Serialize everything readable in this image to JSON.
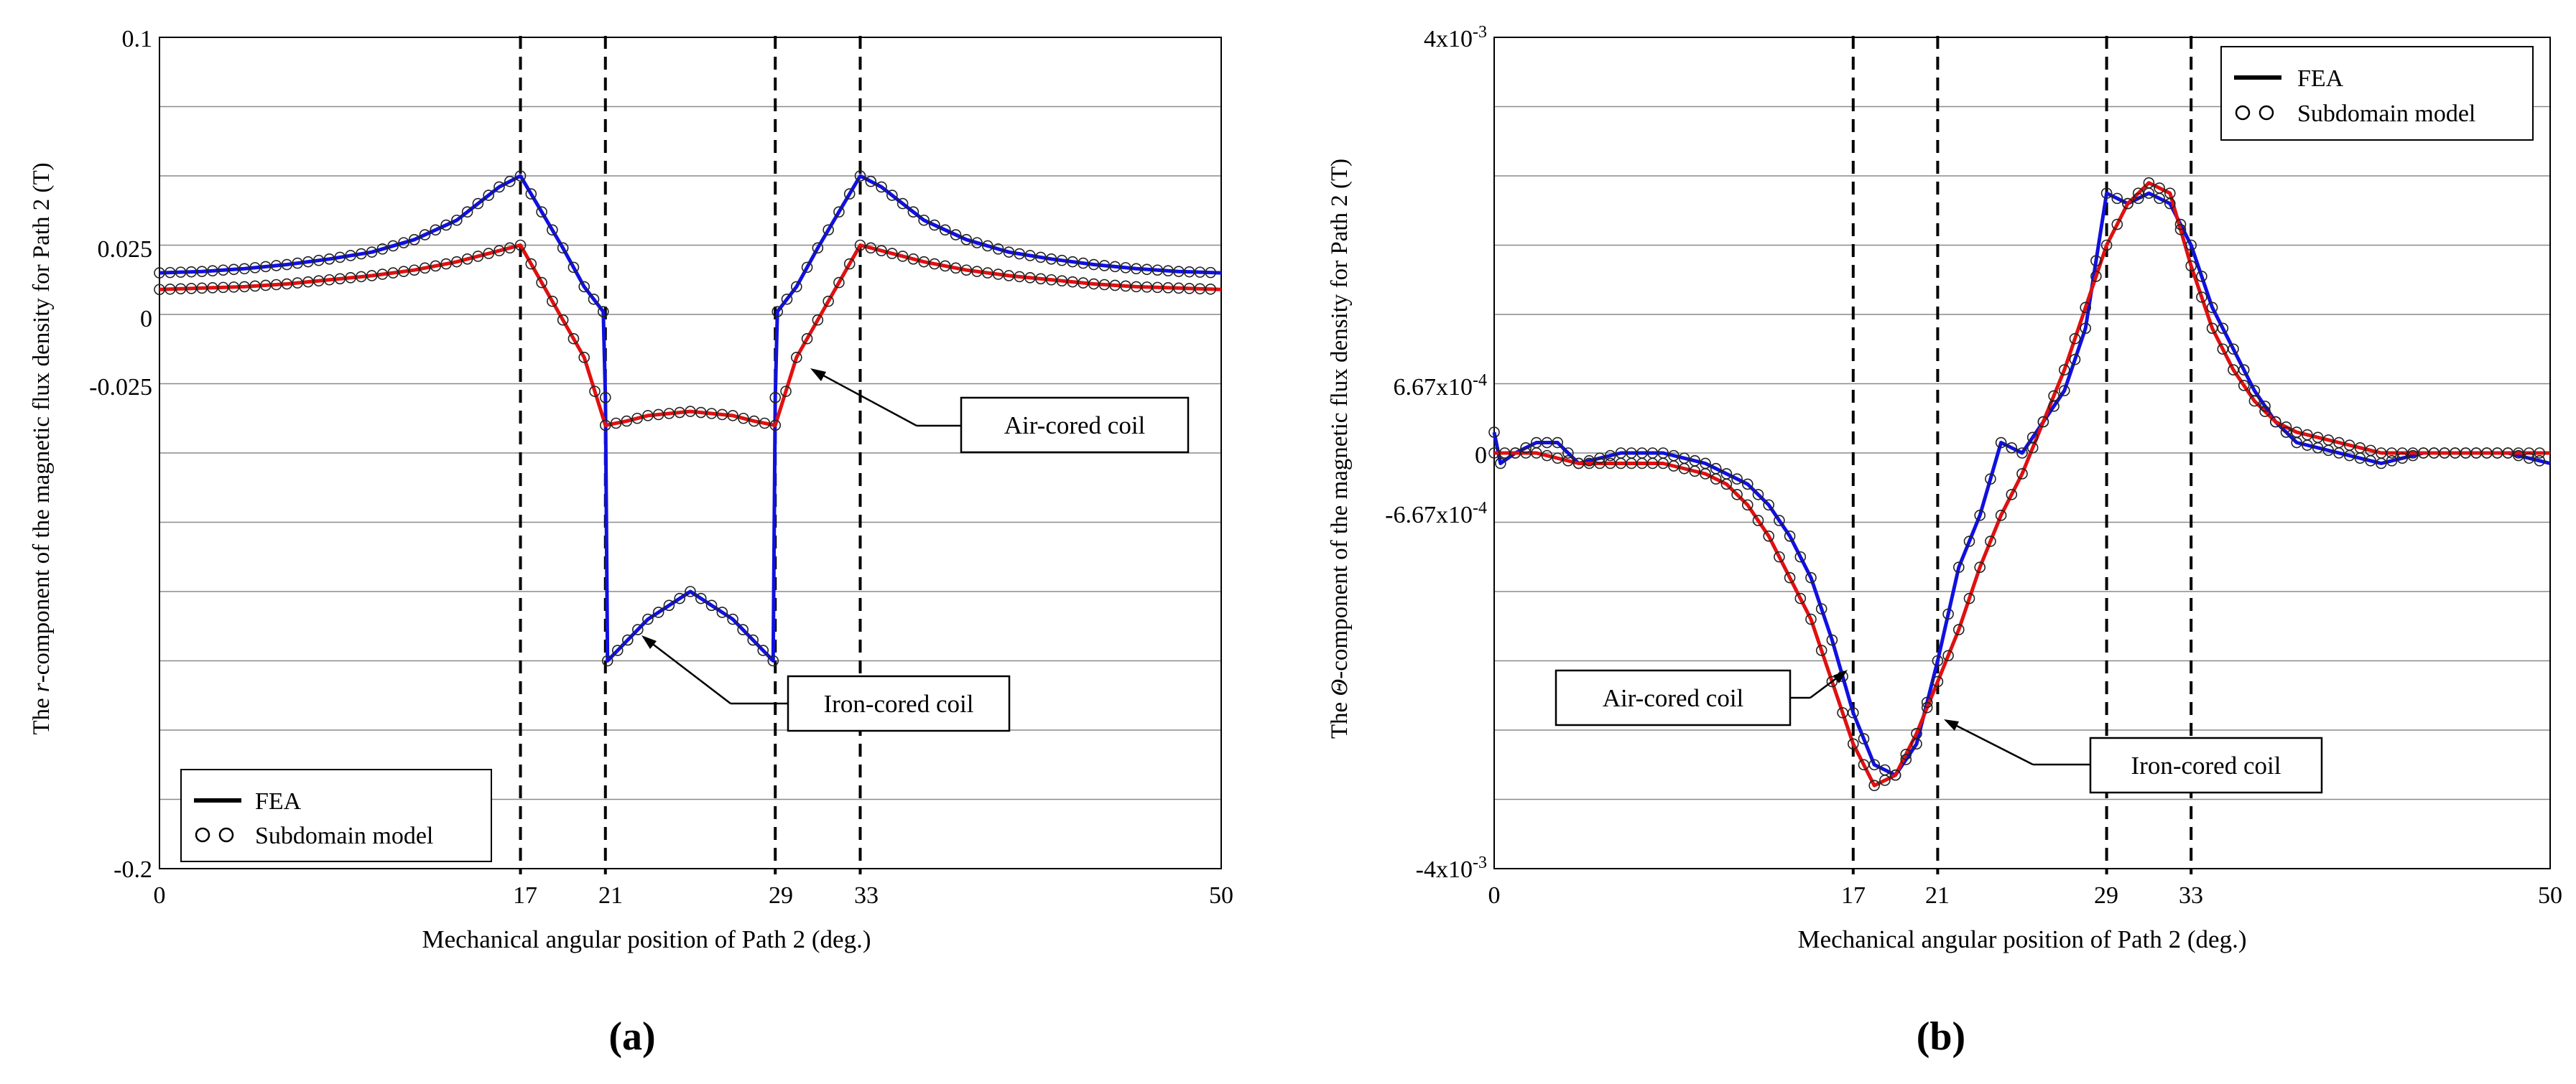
{
  "chart_data": [
    {
      "panel": "a",
      "caption": "(a)",
      "type": "line",
      "xlabel": "Mechanical angular position of Path 2 (deg.)",
      "ylabel_prefix": "The ",
      "ylabel_symbol": "r",
      "ylabel_suffix": "-component of the magnetic flux density for Path 2 (T)",
      "xlim": [
        0,
        50
      ],
      "ylim": [
        -0.2,
        0.1
      ],
      "xticks": [
        "0",
        "17",
        "21",
        "29",
        "33",
        "50"
      ],
      "yticks": [
        "0.1",
        "0.025",
        "0",
        "-0.025",
        "-0.2"
      ],
      "vlines": [
        17,
        21,
        29,
        33
      ],
      "legend": {
        "position": "bottom-left",
        "fea": "FEA",
        "model": "Subdomain model"
      },
      "annotations": {
        "air": "Air-cored coil",
        "iron": "Iron-cored coil"
      },
      "series": [
        {
          "name": "Iron-cored coil",
          "color": "#1010e0",
          "x": [
            0,
            2,
            4,
            6,
            8,
            10,
            12,
            14,
            15,
            16,
            17,
            18,
            19,
            20,
            20.9,
            21,
            21.1,
            23,
            25,
            27,
            28.9,
            29,
            29.1,
            30,
            31,
            32,
            33,
            34,
            35,
            36,
            38,
            40,
            42,
            44,
            46,
            48,
            50
          ],
          "y": [
            0.015,
            0.0155,
            0.0165,
            0.018,
            0.02,
            0.0225,
            0.027,
            0.034,
            0.04,
            0.046,
            0.05,
            0.037,
            0.024,
            0.01,
            0.001,
            -0.03,
            -0.125,
            -0.11,
            -0.1,
            -0.11,
            -0.125,
            -0.03,
            0.001,
            0.01,
            0.024,
            0.037,
            0.05,
            0.046,
            0.04,
            0.034,
            0.027,
            0.0225,
            0.02,
            0.018,
            0.0165,
            0.0155,
            0.015
          ]
        },
        {
          "name": "Air-cored coil",
          "color": "#e01010",
          "x": [
            0,
            2,
            4,
            6,
            8,
            10,
            12,
            14,
            15,
            16,
            17,
            18,
            19,
            20,
            21,
            22,
            23,
            25,
            27,
            28,
            29,
            30,
            31,
            32,
            33,
            34,
            35,
            36,
            38,
            40,
            42,
            44,
            46,
            48,
            50
          ],
          "y": [
            0.009,
            0.0095,
            0.01,
            0.011,
            0.0125,
            0.014,
            0.016,
            0.019,
            0.021,
            0.023,
            0.025,
            0.0115,
            -0.002,
            -0.0155,
            -0.04,
            -0.0385,
            -0.0365,
            -0.035,
            -0.0365,
            -0.0385,
            -0.04,
            -0.0155,
            -0.002,
            0.0115,
            0.025,
            0.023,
            0.021,
            0.019,
            0.016,
            0.014,
            0.0125,
            0.011,
            0.01,
            0.0095,
            0.009
          ]
        }
      ]
    },
    {
      "panel": "b",
      "caption": "(b)",
      "type": "line",
      "xlabel": "Mechanical angular position of Path 2 (deg.)",
      "ylabel_prefix": "The ",
      "ylabel_symbol": "Θ",
      "ylabel_suffix": "-component of the magnetic flux density for Path 2 (T)",
      "xlim": [
        0,
        50
      ],
      "ylim": [
        -0.004,
        0.004
      ],
      "xticks": [
        "0",
        "17",
        "21",
        "29",
        "33",
        "50"
      ],
      "yticks": [
        "4x10-3",
        "6.67x10-4",
        "0",
        "-6.67x10-4",
        "-4x10-3"
      ],
      "vlines": [
        17,
        21,
        29,
        33
      ],
      "legend": {
        "position": "top-right",
        "fea": "FEA",
        "model": "Subdomain model"
      },
      "annotations": {
        "air": "Air-cored coil",
        "iron": "Iron-cored coil"
      },
      "series": [
        {
          "name": "Iron-cored coil",
          "color": "#1010e0",
          "x": [
            0,
            0.3,
            1,
            2,
            3,
            4,
            6,
            8,
            10,
            12,
            13,
            14,
            15,
            16,
            17,
            18,
            19,
            20,
            21,
            22,
            23,
            24,
            25,
            26,
            27,
            28,
            29,
            30,
            31,
            32,
            33,
            34,
            35,
            36,
            37,
            38,
            40,
            42,
            44,
            46,
            48,
            50
          ],
          "y": [
            0.0002,
            -0.0001,
            0,
            0.0001,
            0.0001,
            -0.0001,
            0,
            0,
            -0.0001,
            -0.0003,
            -0.0005,
            -0.0008,
            -0.0012,
            -0.0018,
            -0.0025,
            -0.003,
            -0.0031,
            -0.0028,
            -0.002,
            -0.0011,
            -0.0006,
            0.0001,
            0,
            0.0003,
            0.0006,
            0.0012,
            0.0025,
            0.0024,
            0.0025,
            0.0024,
            0.002,
            0.0014,
            0.001,
            0.0006,
            0.0003,
            0.0001,
            0,
            -0.0001,
            0,
            0,
            0,
            -0.0001
          ]
        },
        {
          "name": "Air-cored coil",
          "color": "#e01010",
          "x": [
            0,
            2,
            4,
            6,
            8,
            10,
            11,
            12,
            13,
            14,
            15,
            16,
            17,
            18,
            19,
            20,
            21,
            22,
            23,
            24,
            25,
            26,
            27,
            28,
            29,
            30,
            31,
            32,
            33,
            34,
            35,
            36,
            37,
            38,
            40,
            42,
            44,
            46,
            48,
            50
          ],
          "y": [
            0,
            0,
            -0.0001,
            -0.0001,
            -0.0001,
            -0.0002,
            -0.0003,
            -0.0005,
            -0.0008,
            -0.0012,
            -0.0016,
            -0.0022,
            -0.0028,
            -0.0032,
            -0.0031,
            -0.0027,
            -0.0022,
            -0.0017,
            -0.0011,
            -0.0006,
            -0.0002,
            0.0003,
            0.0008,
            0.0014,
            0.002,
            0.0024,
            0.0026,
            0.0025,
            0.0018,
            0.0012,
            0.0008,
            0.0005,
            0.0003,
            0.0002,
            0.0001,
            0,
            0,
            0,
            0,
            0
          ]
        }
      ]
    }
  ]
}
